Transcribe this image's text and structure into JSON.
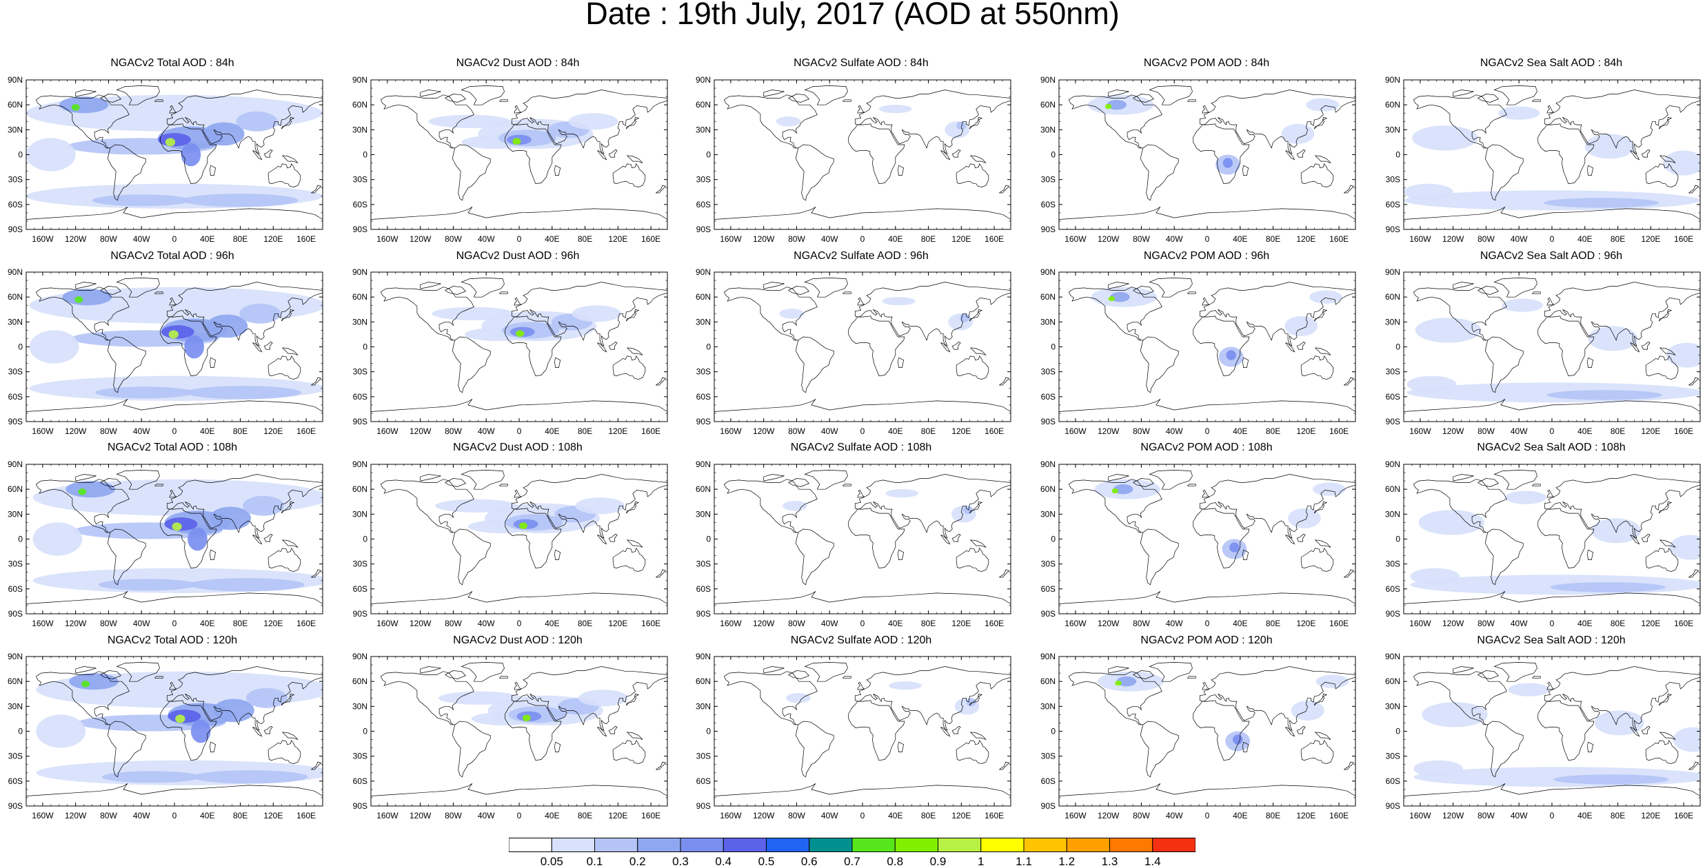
{
  "title": "Date : 19th July, 2017 (AOD at 550nm)",
  "lat_labels": [
    "90N",
    "60N",
    "30N",
    "0",
    "30S",
    "60S",
    "90S"
  ],
  "lon_labels": [
    "160W",
    "120W",
    "80W",
    "40W",
    "0",
    "40E",
    "80E",
    "120E",
    "160E"
  ],
  "panels": [
    {
      "title": "NGACv2 Total AOD : 84h",
      "field": "total",
      "forecast_hour": 84
    },
    {
      "title": "NGACv2 Dust AOD : 84h",
      "field": "dust",
      "forecast_hour": 84
    },
    {
      "title": "NGACv2 Sulfate AOD : 84h",
      "field": "sulfate",
      "forecast_hour": 84
    },
    {
      "title": "NGACv2 POM AOD : 84h",
      "field": "pom",
      "forecast_hour": 84
    },
    {
      "title": "NGACv2 Sea Salt AOD : 84h",
      "field": "seasalt",
      "forecast_hour": 84
    },
    {
      "title": "NGACv2 Total AOD : 96h",
      "field": "total",
      "forecast_hour": 96
    },
    {
      "title": "NGACv2 Dust AOD : 96h",
      "field": "dust",
      "forecast_hour": 96
    },
    {
      "title": "NGACv2 Sulfate AOD : 96h",
      "field": "sulfate",
      "forecast_hour": 96
    },
    {
      "title": "NGACv2 POM AOD : 96h",
      "field": "pom",
      "forecast_hour": 96
    },
    {
      "title": "NGACv2 Sea Salt AOD : 96h",
      "field": "seasalt",
      "forecast_hour": 96
    },
    {
      "title": "NGACv2 Total AOD : 108h",
      "field": "total",
      "forecast_hour": 108
    },
    {
      "title": "NGACv2 Dust AOD : 108h",
      "field": "dust",
      "forecast_hour": 108
    },
    {
      "title": "NGACv2 Sulfate AOD : 108h",
      "field": "sulfate",
      "forecast_hour": 108
    },
    {
      "title": "NGACv2 POM AOD : 108h",
      "field": "pom",
      "forecast_hour": 108
    },
    {
      "title": "NGACv2 Sea Salt AOD : 108h",
      "field": "seasalt",
      "forecast_hour": 108
    },
    {
      "title": "NGACv2 Total AOD : 120h",
      "field": "total",
      "forecast_hour": 120
    },
    {
      "title": "NGACv2 Dust AOD : 120h",
      "field": "dust",
      "forecast_hour": 120
    },
    {
      "title": "NGACv2 Sulfate AOD : 120h",
      "field": "sulfate",
      "forecast_hour": 120
    },
    {
      "title": "NGACv2 POM AOD : 120h",
      "field": "pom",
      "forecast_hour": 120
    },
    {
      "title": "NGACv2 Sea Salt  AOD : 120h",
      "field": "seasalt",
      "forecast_hour": 120
    }
  ],
  "colorbar": {
    "labels": [
      "0.05",
      "0.1",
      "0.2",
      "0.3",
      "0.4",
      "0.5",
      "0.6",
      "0.7",
      "0.8",
      "0.9",
      "1",
      "1.1",
      "1.2",
      "1.3",
      "1.4"
    ],
    "colors": [
      "#ffffff",
      "#d7e1fb",
      "#b4c4f6",
      "#8fa7f0",
      "#7a8ef0",
      "#5c62e9",
      "#1f64f2",
      "#009090",
      "#56e61c",
      "#80f000",
      "#b8f043",
      "#ffff00",
      "#ffc400",
      "#ffa000",
      "#ff7800",
      "#f43012"
    ]
  }
}
